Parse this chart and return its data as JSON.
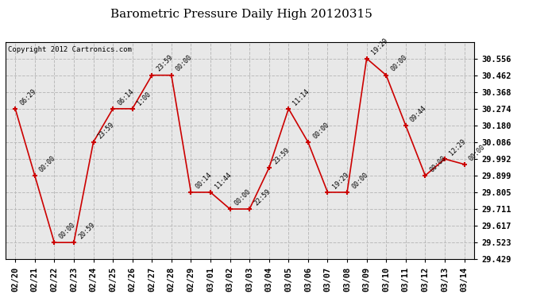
{
  "title": "Barometric Pressure Daily High 20120315",
  "copyright": "Copyright 2012 Cartronics.com",
  "x_labels": [
    "02/20",
    "02/21",
    "02/22",
    "02/23",
    "02/24",
    "02/25",
    "02/26",
    "02/27",
    "02/28",
    "02/29",
    "03/01",
    "03/02",
    "03/03",
    "03/04",
    "03/05",
    "03/06",
    "03/07",
    "03/08",
    "03/09",
    "03/10",
    "03/11",
    "03/12",
    "03/13",
    "03/14"
  ],
  "y_values": [
    30.274,
    29.899,
    29.523,
    29.523,
    30.086,
    30.274,
    30.274,
    30.462,
    30.462,
    29.805,
    29.805,
    29.711,
    29.711,
    29.942,
    30.274,
    30.086,
    29.805,
    29.805,
    30.556,
    30.462,
    30.18,
    29.899,
    29.992,
    29.962
  ],
  "point_labels": [
    "06:29",
    "00:00",
    "00:00",
    "20:59",
    "23:59",
    "06:14",
    "1:00",
    "23:59",
    "00:00",
    "00:14",
    "11:44",
    "00:00",
    "22:59",
    "23:59",
    "11:14",
    "00:00",
    "19:29",
    "00:00",
    "19:29",
    "00:00",
    "09:44",
    "00:00",
    "12:29",
    "00:00"
  ],
  "y_ticks": [
    29.429,
    29.523,
    29.617,
    29.711,
    29.805,
    29.899,
    29.992,
    30.086,
    30.18,
    30.274,
    30.368,
    30.462,
    30.556
  ],
  "y_min": 29.429,
  "y_max": 30.65,
  "line_color": "#cc0000",
  "marker_color": "#cc0000",
  "bg_color": "#ffffff",
  "plot_bg_color": "#e8e8e8",
  "grid_color": "#bbbbbb",
  "title_fontsize": 11,
  "copyright_fontsize": 6.5,
  "label_fontsize": 6,
  "tick_fontsize": 7.5
}
